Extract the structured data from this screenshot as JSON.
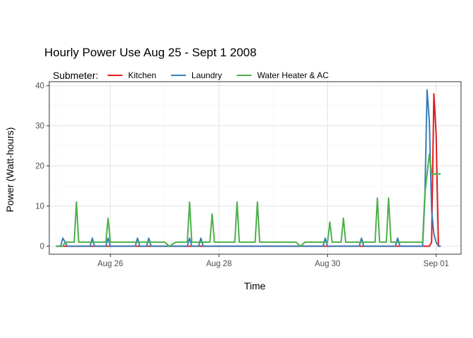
{
  "chart_data": {
    "type": "line",
    "title": "Hourly Power Use Aug 25 - Sept 1 2008",
    "xlabel": "Time",
    "ylabel": "Power (Watt-hours)",
    "legend_title": "Submeter:",
    "legend_position": "top-left",
    "grid": true,
    "x_unit": "datetime (2008)",
    "xlim": [
      "2008-08-24 21:00",
      "2008-09-01 11:00"
    ],
    "ylim": [
      -2,
      41
    ],
    "x_ticks": [
      {
        "label": "Aug 26",
        "value": "2008-08-26 00:00"
      },
      {
        "label": "Aug 28",
        "value": "2008-08-28 00:00"
      },
      {
        "label": "Aug 30",
        "value": "2008-08-30 00:00"
      },
      {
        "label": "Sep 01",
        "value": "2008-09-01 00:00"
      }
    ],
    "y_ticks": [
      0,
      10,
      20,
      30,
      40
    ],
    "colors": {
      "Kitchen": "#e41a1c",
      "Laundry": "#377eb8",
      "Water Heater & AC": "#4daf4a"
    },
    "series": [
      {
        "name": "Kitchen",
        "points": [
          [
            "2008-08-25 00:00",
            0
          ],
          [
            "2008-08-31 21:00",
            0
          ],
          [
            "2008-08-31 22:00",
            1
          ],
          [
            "2008-08-31 23:00",
            38
          ],
          [
            "2008-09-01 00:00",
            28
          ],
          [
            "2008-09-01 01:00",
            0
          ],
          [
            "2008-09-01 02:00",
            0
          ]
        ]
      },
      {
        "name": "Laundry",
        "points": [
          [
            "2008-08-25 00:00",
            0
          ],
          [
            "2008-08-25 02:00",
            0
          ],
          [
            "2008-08-25 03:00",
            2
          ],
          [
            "2008-08-25 04:00",
            1
          ],
          [
            "2008-08-25 05:00",
            0
          ],
          [
            "2008-08-25 15:00",
            0
          ],
          [
            "2008-08-25 16:00",
            2
          ],
          [
            "2008-08-25 17:00",
            0
          ],
          [
            "2008-08-25 22:00",
            0
          ],
          [
            "2008-08-25 23:00",
            2
          ],
          [
            "2008-08-26 00:00",
            0
          ],
          [
            "2008-08-26 11:00",
            0
          ],
          [
            "2008-08-26 12:00",
            2
          ],
          [
            "2008-08-26 13:00",
            0
          ],
          [
            "2008-08-26 16:00",
            0
          ],
          [
            "2008-08-26 17:00",
            2
          ],
          [
            "2008-08-26 18:00",
            0
          ],
          [
            "2008-08-27 10:00",
            0
          ],
          [
            "2008-08-27 11:00",
            2
          ],
          [
            "2008-08-27 12:00",
            0
          ],
          [
            "2008-08-27 15:00",
            0
          ],
          [
            "2008-08-27 16:00",
            2
          ],
          [
            "2008-08-27 17:00",
            0
          ],
          [
            "2008-08-29 22:00",
            0
          ],
          [
            "2008-08-29 23:00",
            2
          ],
          [
            "2008-08-30 00:00",
            0
          ],
          [
            "2008-08-30 14:00",
            0
          ],
          [
            "2008-08-30 15:00",
            2
          ],
          [
            "2008-08-30 16:00",
            0
          ],
          [
            "2008-08-31 06:00",
            0
          ],
          [
            "2008-08-31 07:00",
            2
          ],
          [
            "2008-08-31 08:00",
            0
          ],
          [
            "2008-08-31 18:00",
            0
          ],
          [
            "2008-08-31 19:00",
            12
          ],
          [
            "2008-08-31 20:00",
            39
          ],
          [
            "2008-08-31 21:00",
            31
          ],
          [
            "2008-08-31 22:00",
            9
          ],
          [
            "2008-08-31 23:00",
            3
          ],
          [
            "2008-09-01 00:00",
            1
          ],
          [
            "2008-09-01 01:00",
            0
          ],
          [
            "2008-09-01 02:00",
            0
          ]
        ]
      },
      {
        "name": "Water Heater & AC",
        "points": [
          [
            "2008-08-25 00:00",
            0
          ],
          [
            "2008-08-25 03:00",
            0
          ],
          [
            "2008-08-25 04:00",
            1
          ],
          [
            "2008-08-25 08:00",
            1
          ],
          [
            "2008-08-25 09:00",
            11
          ],
          [
            "2008-08-25 10:00",
            1
          ],
          [
            "2008-08-25 22:00",
            1
          ],
          [
            "2008-08-25 23:00",
            7
          ],
          [
            "2008-08-26 00:00",
            1
          ],
          [
            "2008-08-27 00:00",
            1
          ],
          [
            "2008-08-27 02:00",
            0
          ],
          [
            "2008-08-27 05:00",
            1
          ],
          [
            "2008-08-27 10:00",
            1
          ],
          [
            "2008-08-27 11:00",
            11
          ],
          [
            "2008-08-27 12:00",
            1
          ],
          [
            "2008-08-27 20:00",
            1
          ],
          [
            "2008-08-27 21:00",
            8
          ],
          [
            "2008-08-27 22:00",
            1
          ],
          [
            "2008-08-28 07:00",
            1
          ],
          [
            "2008-08-28 08:00",
            11
          ],
          [
            "2008-08-28 09:00",
            1
          ],
          [
            "2008-08-28 16:00",
            1
          ],
          [
            "2008-08-28 17:00",
            11
          ],
          [
            "2008-08-28 18:00",
            1
          ],
          [
            "2008-08-29 10:00",
            1
          ],
          [
            "2008-08-29 12:00",
            0
          ],
          [
            "2008-08-29 14:00",
            1
          ],
          [
            "2008-08-30 00:00",
            1
          ],
          [
            "2008-08-30 01:00",
            6
          ],
          [
            "2008-08-30 02:00",
            1
          ],
          [
            "2008-08-30 06:00",
            1
          ],
          [
            "2008-08-30 07:00",
            7
          ],
          [
            "2008-08-30 08:00",
            1
          ],
          [
            "2008-08-30 21:00",
            1
          ],
          [
            "2008-08-30 22:00",
            12
          ],
          [
            "2008-08-30 23:00",
            1
          ],
          [
            "2008-08-31 02:00",
            1
          ],
          [
            "2008-08-31 03:00",
            12
          ],
          [
            "2008-08-31 04:00",
            1
          ],
          [
            "2008-08-31 16:00",
            1
          ],
          [
            "2008-08-31 17:00",
            1
          ],
          [
            "2008-08-31 18:00",
            1
          ],
          [
            "2008-08-31 19:00",
            13
          ],
          [
            "2008-08-31 20:00",
            18
          ],
          [
            "2008-08-31 21:00",
            23
          ],
          [
            "2008-08-31 22:00",
            18
          ],
          [
            "2008-08-31 23:00",
            18
          ],
          [
            "2008-09-01 00:00",
            18
          ],
          [
            "2008-09-01 01:00",
            18
          ],
          [
            "2008-09-01 02:00",
            18
          ]
        ]
      }
    ]
  }
}
